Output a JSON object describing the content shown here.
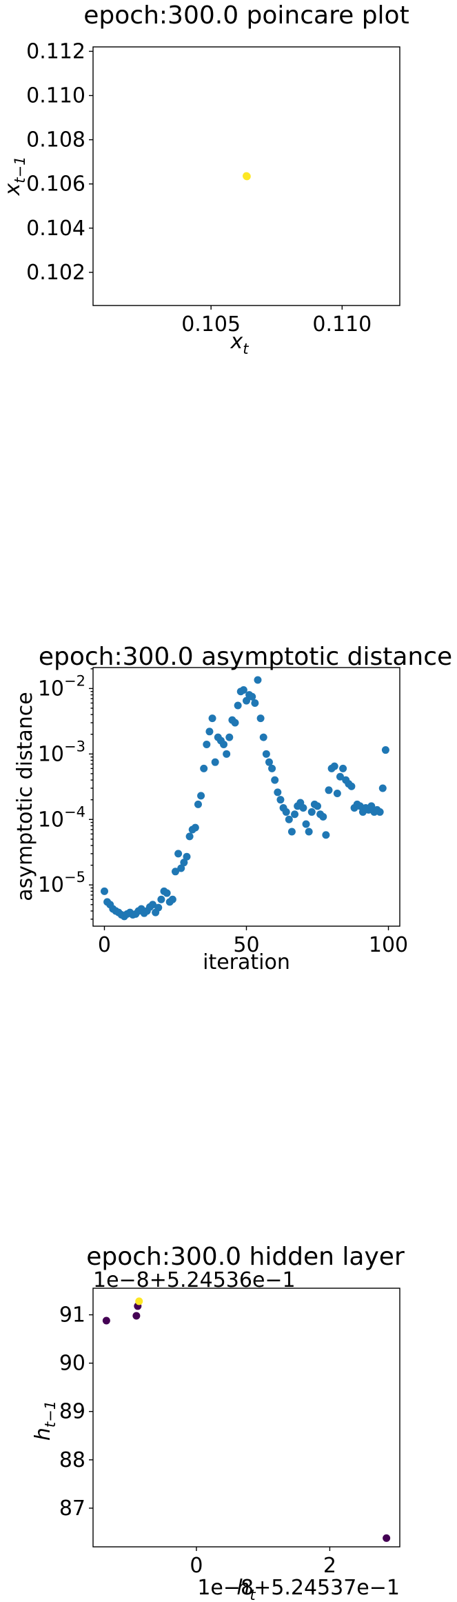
{
  "chart_data": [
    {
      "type": "scatter",
      "title": "epoch:300.0 poincare plot",
      "xlabel_base": "x",
      "xlabel_sub": "t",
      "ylabel_base": "x",
      "ylabel_sub": "t−1",
      "xlim": [
        0.1005,
        0.1122
      ],
      "ylim": [
        0.1005,
        0.1122
      ],
      "xticks": [
        {
          "v": 0.105,
          "label": "0.105"
        },
        {
          "v": 0.11,
          "label": "0.110"
        }
      ],
      "yticks": [
        {
          "v": 0.102,
          "label": "0.102"
        },
        {
          "v": 0.104,
          "label": "0.104"
        },
        {
          "v": 0.106,
          "label": "0.106"
        },
        {
          "v": 0.108,
          "label": "0.108"
        },
        {
          "v": 0.11,
          "label": "0.110"
        },
        {
          "v": 0.112,
          "label": "0.112"
        }
      ],
      "point_color": "#fde725",
      "points": [
        [
          0.10635,
          0.10636
        ],
        [
          0.10637,
          0.10634
        ],
        [
          0.10636,
          0.10635
        ]
      ]
    },
    {
      "type": "scatter",
      "title": "epoch:300.0 asymptotic distance",
      "xlabel": "iteration",
      "ylabel": "asymptotic distance",
      "yscale": "log",
      "xlim": [
        -4,
        104
      ],
      "ylim_log10": [
        -5.63,
        -1.68
      ],
      "xticks": [
        {
          "v": 0,
          "label": "0"
        },
        {
          "v": 50,
          "label": "50"
        },
        {
          "v": 100,
          "label": "100"
        }
      ],
      "yticks": [
        {
          "v": -5,
          "base": "10",
          "exp": "−5"
        },
        {
          "v": -4,
          "base": "10",
          "exp": "−4"
        },
        {
          "v": -3,
          "base": "10",
          "exp": "−3"
        },
        {
          "v": -2,
          "base": "10",
          "exp": "−2"
        }
      ],
      "point_color": "#1f77b4",
      "x": [
        0,
        1,
        2,
        3,
        4,
        5,
        6,
        7,
        8,
        9,
        10,
        11,
        12,
        13,
        14,
        15,
        16,
        17,
        18,
        19,
        20,
        21,
        22,
        23,
        24,
        25,
        26,
        27,
        28,
        29,
        30,
        31,
        32,
        33,
        34,
        35,
        36,
        37,
        38,
        39,
        40,
        41,
        42,
        43,
        44,
        45,
        46,
        47,
        48,
        49,
        50,
        51,
        52,
        53,
        54,
        55,
        56,
        57,
        58,
        59,
        60,
        61,
        62,
        63,
        64,
        65,
        66,
        67,
        68,
        69,
        70,
        71,
        72,
        73,
        74,
        75,
        76,
        77,
        78,
        79,
        80,
        81,
        82,
        83,
        84,
        85,
        86,
        87,
        88,
        89,
        90,
        91,
        92,
        93,
        94,
        95,
        96,
        97,
        98,
        99
      ],
      "y": [
        8e-06,
        5.5e-06,
        5e-06,
        4.3e-06,
        4e-06,
        3.8e-06,
        3.5e-06,
        3.3e-06,
        3.6e-06,
        3.8e-06,
        3.5e-06,
        3.6e-06,
        4e-06,
        4.3e-06,
        3.7e-06,
        4e-06,
        4.6e-06,
        5e-06,
        3.8e-06,
        4.5e-06,
        6e-06,
        8e-06,
        7.5e-06,
        5.5e-06,
        6e-06,
        1.6e-05,
        3e-05,
        1.8e-05,
        2.2e-05,
        2.7e-05,
        5.5e-05,
        7e-05,
        7.5e-05,
        0.00017,
        0.00023,
        0.0006,
        0.0014,
        0.0022,
        0.0035,
        0.00075,
        0.0018,
        0.0016,
        0.0014,
        0.001,
        0.0018,
        0.0033,
        0.003,
        0.0055,
        0.009,
        0.0095,
        0.0065,
        0.008,
        0.0075,
        0.006,
        0.0135,
        0.0035,
        0.0018,
        0.001,
        0.00075,
        0.0006,
        0.0004,
        0.00026,
        0.0002,
        0.00015,
        0.00013,
        0.0001,
        6.5e-05,
        0.00012,
        0.00016,
        0.00018,
        0.00015,
        8.5e-05,
        6.5e-05,
        0.00013,
        0.00017,
        0.00016,
        0.00012,
        0.00011,
        5.8e-05,
        0.00028,
        0.0006,
        0.00065,
        0.00025,
        0.00045,
        0.0006,
        0.0004,
        0.00035,
        0.00032,
        0.00015,
        0.00017,
        0.00016,
        0.00013,
        0.00015,
        0.00014,
        0.00016,
        0.00013,
        0.00014,
        0.00013,
        0.0003,
        0.00115
      ]
    },
    {
      "type": "scatter",
      "title": "epoch:300.0 hidden layer",
      "xlabel_base": "h",
      "xlabel_sub": "t",
      "ylabel_base": "h",
      "ylabel_sub": "t−1",
      "x_offset_text": "1e−8+5.24537e−1",
      "y_offset_text": "1e−8+5.24536e−1",
      "xlim": [
        -1.55,
        3.05
      ],
      "ylim": [
        86.2,
        91.55
      ],
      "xticks": [
        {
          "v": 0,
          "label": "0"
        },
        {
          "v": 2,
          "label": "2"
        }
      ],
      "yticks": [
        {
          "v": 87,
          "label": "87"
        },
        {
          "v": 88,
          "label": "88"
        },
        {
          "v": 89,
          "label": "89"
        },
        {
          "v": 90,
          "label": "90"
        },
        {
          "v": 91,
          "label": "91"
        }
      ],
      "points": [
        {
          "x": -1.35,
          "y": 90.88,
          "color": "#440154"
        },
        {
          "x": -0.9,
          "y": 90.98,
          "color": "#440154"
        },
        {
          "x": -0.88,
          "y": 91.18,
          "color": "#440154"
        },
        {
          "x": -0.86,
          "y": 91.28,
          "color": "#fde725"
        },
        {
          "x": 2.85,
          "y": 86.38,
          "color": "#440154"
        }
      ]
    }
  ]
}
